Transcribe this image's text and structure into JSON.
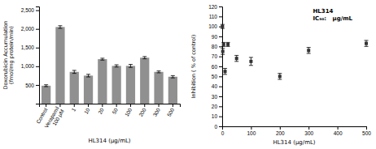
{
  "chart_data": [
    {
      "type": "bar",
      "categories": [
        "Control",
        "Verapamil\n100 μM",
        "1",
        "10",
        "20",
        "50",
        "100",
        "200",
        "300",
        "500"
      ],
      "values": [
        480,
        2050,
        850,
        750,
        1190,
        1010,
        1010,
        1230,
        850,
        720
      ],
      "errors": [
        25,
        35,
        40,
        35,
        25,
        30,
        40,
        30,
        25,
        30
      ],
      "color": "#909090",
      "xlabel": "HL314 (μg/mL)",
      "ylabel": "Doxorubicin Accumulation (fmol/mg protein/min)",
      "ylim": [
        0,
        2600
      ],
      "yticks": [
        {
          "value": 0,
          "label": null
        },
        500,
        {
          "value": 1000,
          "label": "1,000"
        },
        {
          "value": 1500,
          "label": "1,500"
        },
        {
          "value": 2000,
          "label": "2,000"
        },
        {
          "value": 2500,
          "label": "2,500"
        }
      ]
    },
    {
      "type": "scatter",
      "x": [
        1,
        2,
        5,
        10,
        20,
        50,
        100,
        200,
        300,
        500
      ],
      "values": [
        100,
        75,
        82,
        55,
        82,
        68,
        65,
        50,
        76,
        83
      ],
      "errors": [
        2,
        3,
        2,
        3,
        2,
        3,
        4,
        3,
        3,
        3
      ],
      "color": "#333333",
      "marker": "square",
      "xlabel": "HL314 (μg/mL)",
      "ylabel": "Inhibition ( % of control)",
      "xlim": [
        0,
        500
      ],
      "ylim": [
        0,
        120
      ],
      "xticks": [
        0,
        100,
        200,
        300,
        400,
        500
      ],
      "yticks": [
        0,
        10,
        20,
        30,
        40,
        50,
        60,
        70,
        80,
        90,
        100,
        110,
        120
      ],
      "annotations": [
        "HL314",
        "IC₅₀:   μg/mL"
      ]
    }
  ]
}
